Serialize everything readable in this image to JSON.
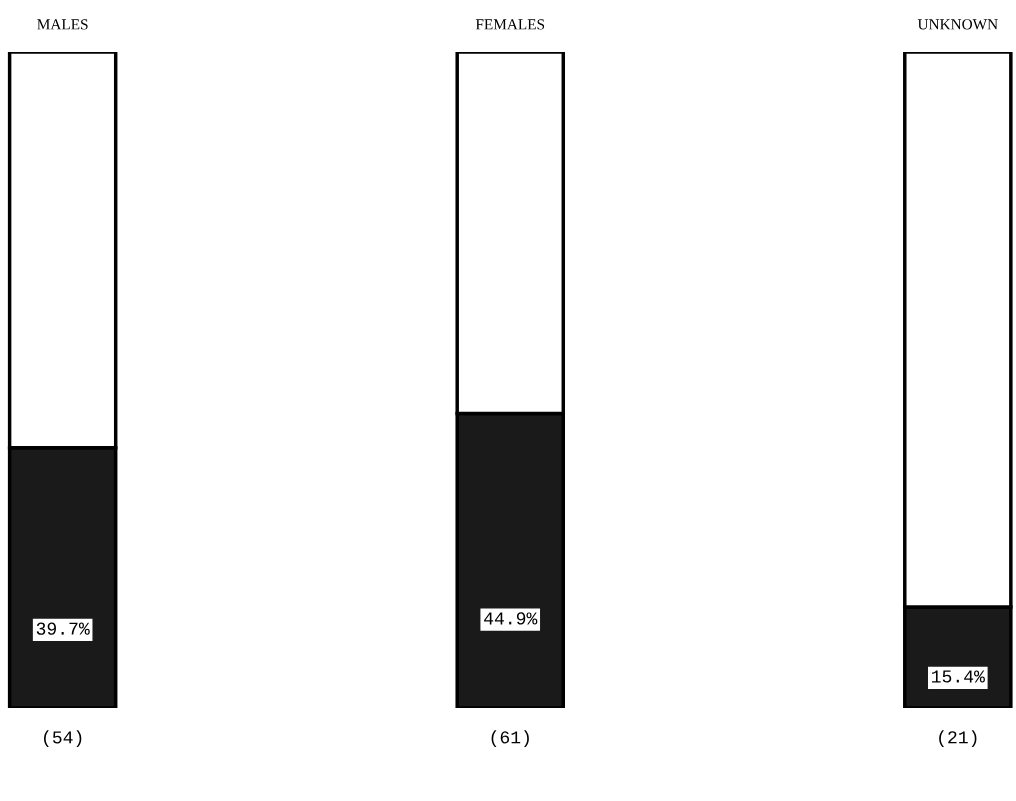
{
  "chart_data": {
    "type": "bar",
    "stacked": true,
    "categories": [
      "MALES",
      "FEMALES",
      "UNKNOWN"
    ],
    "series": [
      {
        "color": "#1a1a1a",
        "values": [
          39.7,
          44.9,
          15.4
        ],
        "value_labels": [
          "39.7%",
          "44.9%",
          "15.4%"
        ]
      },
      {
        "color": "#ffffff",
        "values": [
          60.3,
          55.1,
          84.6
        ]
      }
    ],
    "ylim": [
      0,
      100
    ],
    "tick_labels": "x",
    "grid": false,
    "legend": false,
    "annotations": [
      "(54)",
      "(61)",
      "(21)"
    ]
  }
}
